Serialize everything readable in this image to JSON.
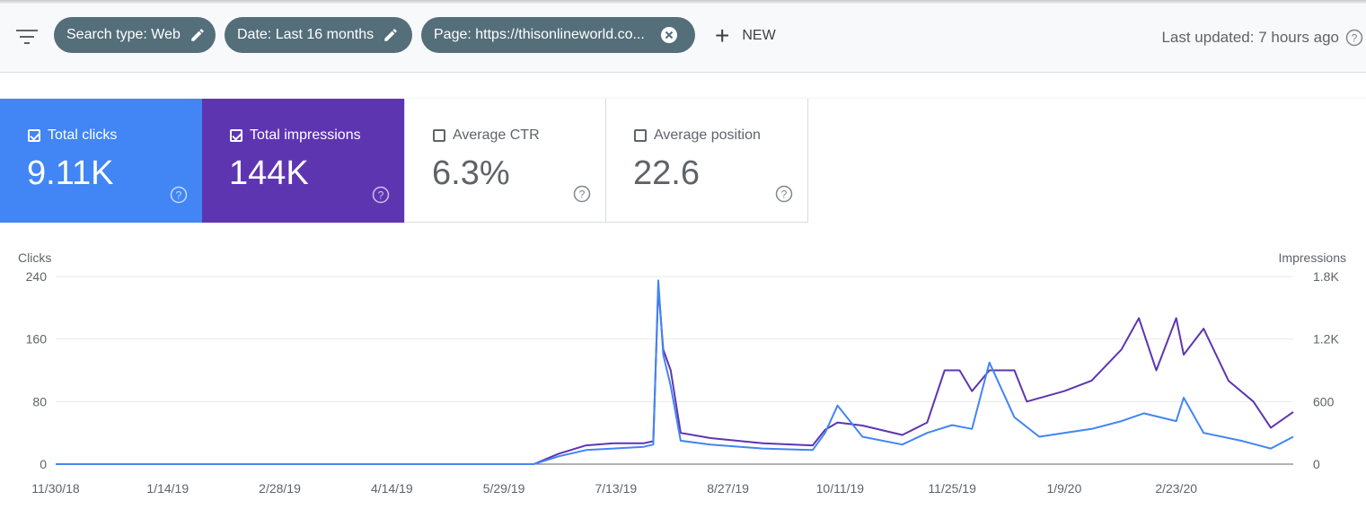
{
  "filters": [
    {
      "label": "Search type: Web",
      "icon": "pencil-icon"
    },
    {
      "label": "Date: Last 16 months",
      "icon": "pencil-icon"
    },
    {
      "label": "Page: https://thisonlineworld.co...",
      "icon": "close-icon"
    }
  ],
  "new_label": "NEW",
  "last_updated": "Last updated: 7 hours ago",
  "metrics": {
    "clicks": {
      "label": "Total clicks",
      "value": "9.11K",
      "checked": true,
      "color": "#4285f4"
    },
    "impressions": {
      "label": "Total impressions",
      "value": "144K",
      "checked": true,
      "color": "#5e35b1"
    },
    "ctr": {
      "label": "Average CTR",
      "value": "6.3%",
      "checked": false
    },
    "position": {
      "label": "Average position",
      "value": "22.6",
      "checked": false
    }
  },
  "chart_data": {
    "type": "line",
    "ylabel_left": "Clicks",
    "ylabel_right": "Impressions",
    "y_left_ticks": [
      "0",
      "80",
      "160",
      "240"
    ],
    "y_right_ticks": [
      "0",
      "600",
      "1.2K",
      "1.8K"
    ],
    "ylim_left": [
      0,
      240
    ],
    "ylim_right": [
      0,
      1800
    ],
    "x_ticks": [
      "11/30/18",
      "1/14/19",
      "2/28/19",
      "4/14/19",
      "5/29/19",
      "7/13/19",
      "8/27/19",
      "10/11/19",
      "11/25/19",
      "1/9/20",
      "2/23/20"
    ],
    "grid": true,
    "series": [
      {
        "name": "Clicks",
        "color": "#4285f4",
        "axis": "left",
        "points": [
          [
            "11/30/18",
            0
          ],
          [
            "6/10/19",
            0
          ],
          [
            "6/20/19",
            10
          ],
          [
            "7/1/19",
            18
          ],
          [
            "7/12/19",
            20
          ],
          [
            "7/24/19",
            22
          ],
          [
            "7/28/19",
            25
          ],
          [
            "7/30/19",
            235
          ],
          [
            "8/1/19",
            140
          ],
          [
            "8/4/19",
            100
          ],
          [
            "8/8/19",
            30
          ],
          [
            "8/20/19",
            25
          ],
          [
            "9/10/19",
            20
          ],
          [
            "9/30/19",
            18
          ],
          [
            "10/5/19",
            40
          ],
          [
            "10/10/19",
            75
          ],
          [
            "10/20/19",
            35
          ],
          [
            "11/5/19",
            25
          ],
          [
            "11/15/19",
            40
          ],
          [
            "11/25/19",
            50
          ],
          [
            "12/3/19",
            45
          ],
          [
            "12/10/19",
            130
          ],
          [
            "12/20/19",
            60
          ],
          [
            "12/30/19",
            35
          ],
          [
            "1/9/20",
            40
          ],
          [
            "1/20/20",
            45
          ],
          [
            "2/1/20",
            55
          ],
          [
            "2/10/20",
            65
          ],
          [
            "2/23/20",
            55
          ],
          [
            "2/26/20",
            85
          ],
          [
            "3/5/20",
            40
          ],
          [
            "3/20/20",
            30
          ],
          [
            "4/1/20",
            20
          ],
          [
            "4/10/20",
            35
          ]
        ]
      },
      {
        "name": "Impressions",
        "color": "#5e35b1",
        "axis": "right",
        "points": [
          [
            "11/30/18",
            0
          ],
          [
            "6/10/19",
            0
          ],
          [
            "6/20/19",
            100
          ],
          [
            "7/1/19",
            180
          ],
          [
            "7/12/19",
            200
          ],
          [
            "7/24/19",
            200
          ],
          [
            "7/28/19",
            220
          ],
          [
            "7/30/19",
            1700
          ],
          [
            "8/1/19",
            1100
          ],
          [
            "8/4/19",
            900
          ],
          [
            "8/8/19",
            300
          ],
          [
            "8/20/19",
            250
          ],
          [
            "9/10/19",
            200
          ],
          [
            "9/30/19",
            180
          ],
          [
            "10/5/19",
            330
          ],
          [
            "10/10/19",
            400
          ],
          [
            "10/20/19",
            370
          ],
          [
            "11/5/19",
            280
          ],
          [
            "11/15/19",
            400
          ],
          [
            "11/22/19",
            900
          ],
          [
            "11/28/19",
            900
          ],
          [
            "12/3/19",
            700
          ],
          [
            "12/10/19",
            900
          ],
          [
            "12/20/19",
            900
          ],
          [
            "12/25/19",
            600
          ],
          [
            "1/9/20",
            700
          ],
          [
            "1/20/20",
            800
          ],
          [
            "2/1/20",
            1100
          ],
          [
            "2/8/20",
            1400
          ],
          [
            "2/15/20",
            900
          ],
          [
            "2/23/20",
            1400
          ],
          [
            "2/26/20",
            1050
          ],
          [
            "3/5/20",
            1300
          ],
          [
            "3/15/20",
            800
          ],
          [
            "3/25/20",
            600
          ],
          [
            "4/1/20",
            350
          ],
          [
            "4/10/20",
            500
          ]
        ]
      }
    ]
  }
}
